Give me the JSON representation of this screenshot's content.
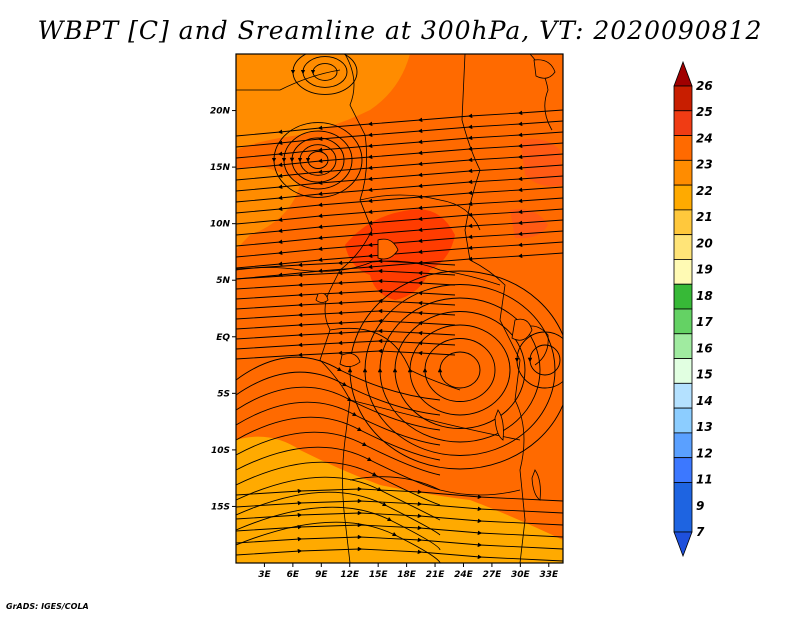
{
  "title": "WBPT [C] and Sreamline at 300hPa, VT: 2020090812",
  "credit": "GrADS: IGES/COLA",
  "map": {
    "lat_labels": [
      "20N",
      "15N",
      "10N",
      "5N",
      "EQ",
      "5S",
      "10S",
      "15S"
    ],
    "lat_values": [
      20,
      15,
      10,
      5,
      0,
      -5,
      -10,
      -15
    ],
    "lon_labels": [
      "3E",
      "6E",
      "9E",
      "12E",
      "15E",
      "18E",
      "21E",
      "24E",
      "27E",
      "30E",
      "33E"
    ],
    "lon_values": [
      3,
      6,
      9,
      12,
      15,
      18,
      21,
      24,
      27,
      30,
      33
    ],
    "lon_range": [
      0,
      34.5
    ],
    "lat_range": [
      -20,
      25
    ],
    "base_color": "#ff6a00",
    "regions": [
      {
        "name": "northern band",
        "color": "#ff8c00"
      },
      {
        "name": "southwest band",
        "color": "#ffaa00"
      },
      {
        "name": "central maximum",
        "color": "#ff3c00"
      }
    ]
  },
  "colorbar": {
    "labels": [
      "26",
      "25",
      "24",
      "23",
      "22",
      "21",
      "20",
      "19",
      "18",
      "17",
      "16",
      "15",
      "14",
      "13",
      "12",
      "11",
      "9",
      "7"
    ],
    "colors": [
      "#a00000",
      "#c81e00",
      "#f03c14",
      "#ff6a00",
      "#ff8c00",
      "#ffaa00",
      "#ffc83c",
      "#ffe478",
      "#fffab4",
      "#37b937",
      "#64d264",
      "#a0eba0",
      "#e1ffe1",
      "#b4e1ff",
      "#8ccdff",
      "#5aa0ff",
      "#3c78ff",
      "#1e64e1",
      "#1e50dc"
    ]
  }
}
